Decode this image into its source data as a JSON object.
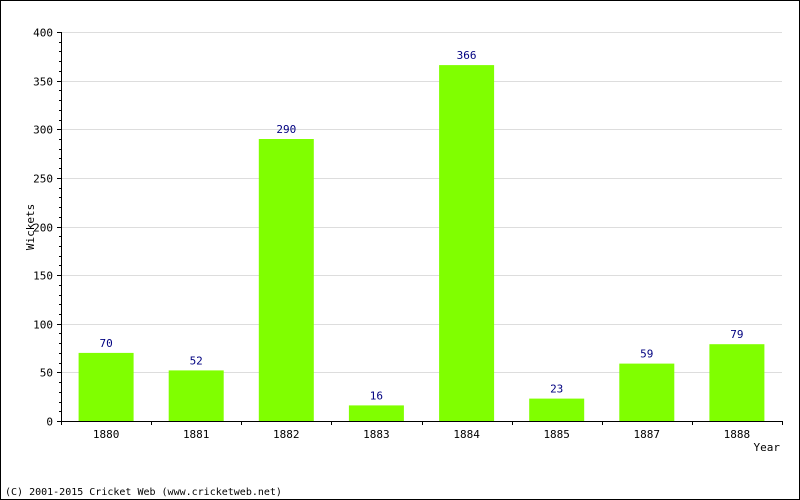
{
  "chart_data": {
    "type": "bar",
    "title": "",
    "xlabel": "Year",
    "ylabel": "Wickets",
    "categories": [
      "1880",
      "1881",
      "1882",
      "1883",
      "1884",
      "1885",
      "1887",
      "1888"
    ],
    "values": [
      70,
      52,
      290,
      16,
      366,
      23,
      59,
      79
    ],
    "ylim": [
      0,
      400
    ],
    "yticks": [
      0,
      50,
      100,
      150,
      200,
      250,
      300,
      350,
      400
    ],
    "grid": true,
    "legend": "none",
    "data_labels": true,
    "bar_color": "#80ff00",
    "label_color": "#000080"
  },
  "footer": {
    "copyright": "(C) 2001-2015 Cricket Web (www.cricketweb.net)"
  }
}
